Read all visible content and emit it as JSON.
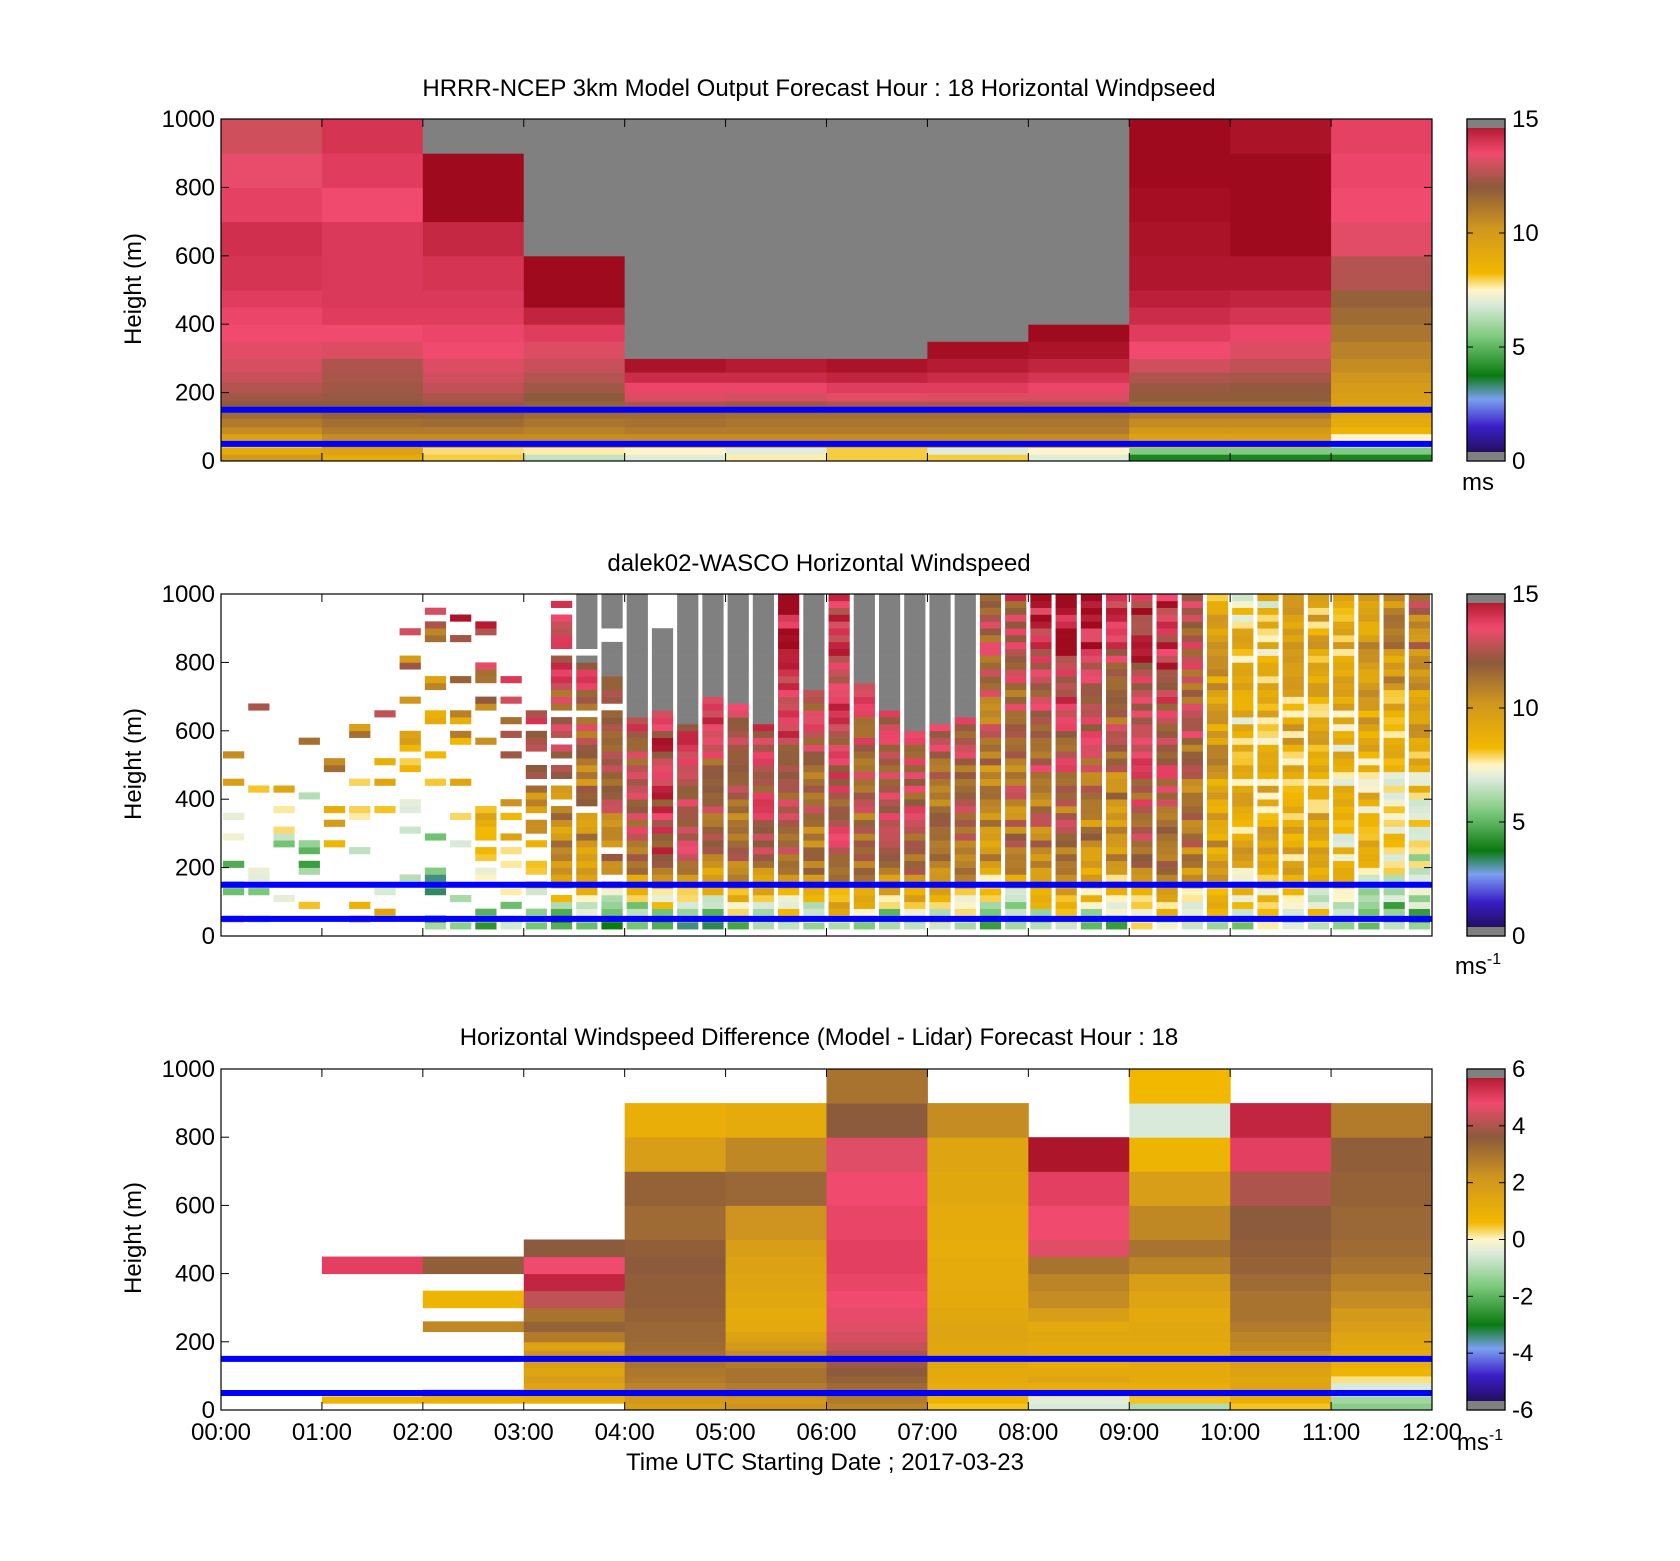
{
  "figure": {
    "xlabel": "Time UTC  Starting Date ; 2017-03-23",
    "x_tick_labels": [
      "00:00",
      "01:00",
      "02:00",
      "03:00",
      "04:00",
      "05:00",
      "06:00",
      "07:00",
      "08:00",
      "09:00",
      "10:00",
      "11:00",
      "12:00"
    ],
    "reference_lines_height_m": [
      150,
      50
    ],
    "reference_line_color": "#0000ff",
    "missing_color": "#808080"
  },
  "colormap": {
    "stops": [
      {
        "t": 0.0,
        "color": "#1a0a3c"
      },
      {
        "t": 0.1,
        "color": "#3a1ec8"
      },
      {
        "t": 0.18,
        "color": "#7aa0f0"
      },
      {
        "t": 0.25,
        "color": "#0a7a10"
      },
      {
        "t": 0.36,
        "color": "#7ac87a"
      },
      {
        "t": 0.46,
        "color": "#dcebdc"
      },
      {
        "t": 0.5,
        "color": "#fff5c8"
      },
      {
        "t": 0.55,
        "color": "#f2b800"
      },
      {
        "t": 0.68,
        "color": "#d0961e"
      },
      {
        "t": 0.8,
        "color": "#8c5a3c"
      },
      {
        "t": 0.9,
        "color": "#f04a6e"
      },
      {
        "t": 1.0,
        "color": "#a00a1e"
      }
    ]
  },
  "chart_data": [
    {
      "type": "heatmap",
      "title": "HRRR-NCEP 3km Model Output   Forecast Hour : 18 Horizontal Windpseed",
      "ylabel": "Height (m)",
      "ylim": [
        0,
        1000
      ],
      "y_ticks": [
        0,
        200,
        400,
        600,
        800,
        1000
      ],
      "xlim": [
        0,
        12
      ],
      "clim": [
        0,
        15
      ],
      "colorbar_ticks": [
        0,
        5,
        10,
        15
      ],
      "colorbar_unit": "ms",
      "colorbar_unit_sup": "",
      "value_unit": "m/s",
      "x_hours": [
        0,
        1,
        2,
        3,
        4,
        5,
        6,
        7,
        8,
        9,
        10,
        11
      ],
      "levels_m": [
        0,
        20,
        40,
        60,
        80,
        100,
        125,
        150,
        175,
        200,
        230,
        260,
        300,
        350,
        400,
        450,
        500,
        600,
        700,
        800,
        900,
        1000
      ],
      "profiles": [
        [
          10.0,
          9.0,
          8.0,
          9.5,
          10.5,
          11.0,
          11.5,
          12.0,
          12.3,
          12.6,
          12.9,
          13.1,
          13.3,
          13.5,
          13.6,
          13.8,
          14.0,
          14.1,
          13.7,
          13.4,
          13.0
        ],
        [
          9.0,
          9.5,
          10.0,
          10.5,
          11.0,
          11.4,
          11.8,
          12.0,
          12.2,
          12.3,
          12.4,
          12.5,
          13.2,
          13.5,
          13.8,
          13.9,
          13.9,
          13.9,
          13.5,
          13.8,
          14.0
        ],
        [
          8.0,
          7.8,
          9.8,
          10.5,
          11.0,
          11.5,
          11.8,
          12.2,
          12.5,
          12.8,
          13.0,
          13.2,
          13.5,
          13.6,
          13.8,
          13.9,
          14.0,
          14.3,
          15.0,
          15.0,
          null
        ],
        [
          6.5,
          7.6,
          9.8,
          10.5,
          10.8,
          11.2,
          11.5,
          11.8,
          12.0,
          12.3,
          12.6,
          12.9,
          13.2,
          13.8,
          14.4,
          15.0,
          15.0,
          null,
          null,
          null,
          null
        ],
        [
          7.0,
          7.5,
          9.0,
          10.5,
          11.0,
          11.3,
          11.5,
          12.5,
          13.2,
          13.6,
          14.2,
          14.8,
          null,
          null,
          null,
          null,
          null,
          null,
          null,
          null,
          null
        ],
        [
          7.6,
          7.0,
          9.0,
          10.5,
          11.0,
          11.2,
          11.4,
          12.3,
          13.1,
          13.6,
          14.2,
          14.6,
          null,
          null,
          null,
          null,
          null,
          null,
          null,
          null,
          null
        ],
        [
          8.0,
          8.0,
          9.5,
          10.5,
          11.0,
          11.2,
          11.4,
          12.5,
          13.3,
          13.8,
          14.4,
          14.8,
          null,
          null,
          null,
          null,
          null,
          null,
          null,
          null,
          null
        ],
        [
          8.0,
          7.0,
          9.5,
          10.5,
          11.0,
          11.2,
          11.4,
          12.5,
          13.2,
          13.8,
          14.2,
          14.6,
          14.9,
          null,
          null,
          null,
          null,
          null,
          null,
          null,
          null
        ],
        [
          7.0,
          7.5,
          9.5,
          10.5,
          11.0,
          11.2,
          11.4,
          12.5,
          13.2,
          13.6,
          14.0,
          14.4,
          14.8,
          15.0,
          null,
          null,
          null,
          null,
          null,
          null,
          null
        ],
        [
          4.0,
          5.5,
          8.5,
          9.5,
          10.0,
          10.5,
          11.0,
          11.5,
          11.9,
          12.2,
          12.5,
          13.0,
          13.5,
          13.8,
          14.2,
          14.5,
          14.7,
          14.8,
          14.9,
          15.0,
          15.0
        ],
        [
          4.0,
          5.5,
          8.5,
          9.5,
          10.0,
          10.5,
          11.0,
          11.5,
          11.9,
          12.1,
          12.4,
          12.8,
          13.2,
          13.6,
          14.0,
          14.4,
          14.7,
          15.0,
          15.0,
          15.0,
          14.8
        ],
        [
          4.0,
          5.5,
          6.5,
          7.5,
          8.5,
          9.0,
          9.3,
          9.5,
          9.7,
          9.9,
          10.2,
          10.5,
          10.8,
          11.2,
          11.5,
          11.8,
          12.6,
          13.3,
          13.5,
          13.6,
          13.7
        ]
      ]
    },
    {
      "type": "heatmap",
      "title": "dalek02-WASCO  Horizontal Windspeed",
      "ylabel": "Height (m)",
      "ylim": [
        0,
        1000
      ],
      "y_ticks": [
        0,
        200,
        400,
        600,
        800,
        1000
      ],
      "xlim": [
        0,
        12
      ],
      "clim": [
        0,
        15
      ],
      "colorbar_ticks": [
        0,
        5,
        10,
        15
      ],
      "colorbar_unit": "ms",
      "colorbar_unit_sup": "-1",
      "value_unit": "m/s",
      "time_step_hours": 0.25,
      "level_step_m": 20,
      "top_valid_m": [
        650,
        700,
        680,
        640,
        600,
        720,
        760,
        960,
        980,
        980,
        940,
        800,
        650,
        1000,
        1000,
        1000,
        1000,
        900,
        1000,
        1000,
        1000,
        1000,
        1000,
        1000,
        1000,
        1000,
        1000,
        1000,
        1000,
        1000,
        1000,
        1000,
        1000,
        1000,
        1000,
        1000,
        1000,
        1000,
        1000,
        1000,
        1000,
        1000,
        1000,
        1000,
        1000,
        1000,
        1000,
        1000
      ],
      "coverage_pct": [
        28,
        28,
        28,
        28,
        28,
        28,
        28,
        28,
        28,
        30,
        32,
        35,
        60,
        80,
        90,
        95,
        100,
        100,
        100,
        100,
        100,
        100,
        100,
        100,
        100,
        100,
        100,
        100,
        100,
        100,
        100,
        100,
        100,
        100,
        100,
        100,
        100,
        100,
        100,
        100,
        100,
        100,
        100,
        100,
        100,
        100,
        100,
        100
      ],
      "missing_above_m": [
        null,
        null,
        null,
        null,
        null,
        null,
        null,
        null,
        null,
        null,
        null,
        null,
        null,
        null,
        800,
        760,
        640,
        660,
        620,
        700,
        680,
        620,
        null,
        720,
        null,
        740,
        660,
        600,
        620,
        640,
        null,
        null,
        null,
        null,
        null,
        null,
        null,
        null,
        null,
        null,
        null,
        null,
        null,
        null,
        null,
        null,
        null,
        null
      ],
      "surface_speed_ms": [
        8,
        8,
        9,
        9,
        8,
        8,
        9,
        9,
        6,
        6,
        5,
        5,
        4,
        4,
        5,
        4,
        3,
        3,
        2,
        3,
        5,
        4,
        5,
        5,
        6,
        6,
        4,
        5,
        6,
        6,
        5,
        4,
        5,
        6,
        5,
        5,
        6,
        6,
        6,
        6,
        6,
        6,
        6,
        6,
        6,
        6,
        5,
        5
      ],
      "mid_speed_ms": [
        5,
        6,
        6,
        5,
        7,
        6,
        6,
        5,
        4,
        6,
        7,
        8,
        9,
        10,
        10,
        11,
        12,
        13,
        12,
        11,
        11,
        12,
        12,
        11,
        12,
        11,
        12,
        12,
        11,
        11,
        10,
        11,
        11,
        11,
        10,
        10,
        12,
        12,
        11,
        10,
        9,
        9,
        9,
        9,
        8,
        8,
        7,
        7
      ],
      "top_speed_ms": [
        12,
        12,
        11,
        11,
        12,
        12,
        13,
        13,
        13,
        14,
        14,
        14,
        14,
        14,
        14,
        14,
        14,
        14,
        15,
        15,
        15,
        15,
        15,
        14,
        14,
        14,
        13,
        14,
        14,
        14,
        13,
        13,
        14,
        15,
        15,
        14,
        14,
        14,
        13,
        9,
        8,
        8,
        9,
        9,
        9,
        10,
        11,
        12
      ]
    },
    {
      "type": "heatmap",
      "title": "Horizontal Windspeed Difference (Model - Lidar) Forecast Hour : 18",
      "ylabel": "Height (m)",
      "xlabel": "Time UTC  Starting Date ; 2017-03-23",
      "ylim": [
        0,
        1000
      ],
      "y_ticks": [
        0,
        200,
        400,
        600,
        800,
        1000
      ],
      "xlim": [
        0,
        12
      ],
      "clim": [
        -6,
        6
      ],
      "colorbar_ticks": [
        -6,
        -4,
        -2,
        0,
        2,
        4,
        6
      ],
      "colorbar_unit": "ms",
      "colorbar_unit_sup": "-1",
      "value_unit": "m/s",
      "x_hours": [
        0,
        1,
        2,
        3,
        4,
        5,
        6,
        7,
        8,
        9,
        10,
        11
      ],
      "levels_m": [
        0,
        20,
        40,
        60,
        80,
        100,
        125,
        150,
        175,
        200,
        230,
        260,
        300,
        350,
        400,
        450,
        500,
        600,
        700,
        800,
        900,
        1000
      ],
      "profiles": [
        [
          null,
          null,
          null,
          null,
          null,
          null,
          null,
          null,
          null,
          null,
          null,
          null,
          null,
          null,
          null,
          null,
          null,
          null,
          null,
          null,
          null
        ],
        [
          null,
          0.8,
          null,
          null,
          null,
          null,
          null,
          null,
          null,
          null,
          null,
          null,
          null,
          null,
          5.0,
          null,
          null,
          null,
          null,
          null,
          null
        ],
        [
          null,
          0.9,
          1.2,
          null,
          null,
          null,
          null,
          null,
          null,
          null,
          2.5,
          null,
          0.8,
          null,
          3.5,
          null,
          null,
          null,
          null,
          null,
          null
        ],
        [
          null,
          1.0,
          1.2,
          1.5,
          1.8,
          1.5,
          1.8,
          2.2,
          1.6,
          2.8,
          3.4,
          3.0,
          4.2,
          5.5,
          4.8,
          3.6,
          null,
          null,
          null,
          null,
          null
        ],
        [
          1.8,
          2.0,
          2.2,
          2.6,
          2.8,
          2.9,
          3.0,
          3.1,
          3.2,
          3.3,
          3.3,
          3.4,
          3.5,
          3.5,
          3.6,
          3.5,
          3.2,
          3.4,
          1.8,
          1.0,
          null
        ],
        [
          2.2,
          2.0,
          2.5,
          2.8,
          3.0,
          3.0,
          2.8,
          2.4,
          2.0,
          1.6,
          1.3,
          1.2,
          1.4,
          1.5,
          1.6,
          1.8,
          2.2,
          3.3,
          2.5,
          1.2,
          null
        ],
        [
          2.6,
          2.8,
          3.0,
          3.2,
          3.4,
          3.6,
          3.8,
          4.0,
          4.3,
          4.5,
          4.6,
          4.7,
          4.8,
          4.9,
          5.0,
          5.0,
          4.9,
          4.8,
          4.6,
          3.6,
          3.0
        ],
        [
          0.5,
          0.8,
          1.0,
          1.1,
          1.2,
          1.3,
          1.4,
          1.4,
          1.4,
          1.5,
          1.5,
          1.4,
          1.3,
          1.2,
          1.2,
          1.1,
          1.2,
          1.4,
          1.5,
          2.4,
          null
        ],
        [
          -0.5,
          -0.4,
          0.3,
          1.0,
          1.5,
          1.3,
          1.1,
          1.2,
          1.3,
          1.4,
          1.3,
          1.8,
          2.4,
          2.6,
          3.0,
          4.6,
          4.8,
          5.0,
          5.8,
          null,
          null
        ],
        [
          -1.0,
          0.5,
          0.8,
          1.0,
          1.2,
          1.3,
          1.3,
          1.2,
          1.3,
          1.4,
          1.4,
          1.3,
          1.5,
          1.8,
          2.6,
          3.0,
          2.5,
          1.8,
          0.8,
          -0.5,
          0.6
        ],
        [
          0.5,
          1.0,
          1.4,
          1.5,
          1.4,
          1.6,
          1.8,
          2.2,
          2.5,
          2.6,
          2.8,
          3.0,
          3.0,
          3.2,
          3.4,
          3.5,
          3.6,
          4.0,
          5.0,
          5.5,
          null
        ],
        [
          -1.5,
          -1.2,
          -0.8,
          -0.5,
          0.2,
          0.8,
          1.0,
          1.2,
          1.4,
          1.5,
          1.8,
          2.0,
          2.4,
          2.7,
          3.0,
          3.2,
          3.3,
          3.4,
          3.5,
          2.8,
          null
        ]
      ]
    }
  ]
}
